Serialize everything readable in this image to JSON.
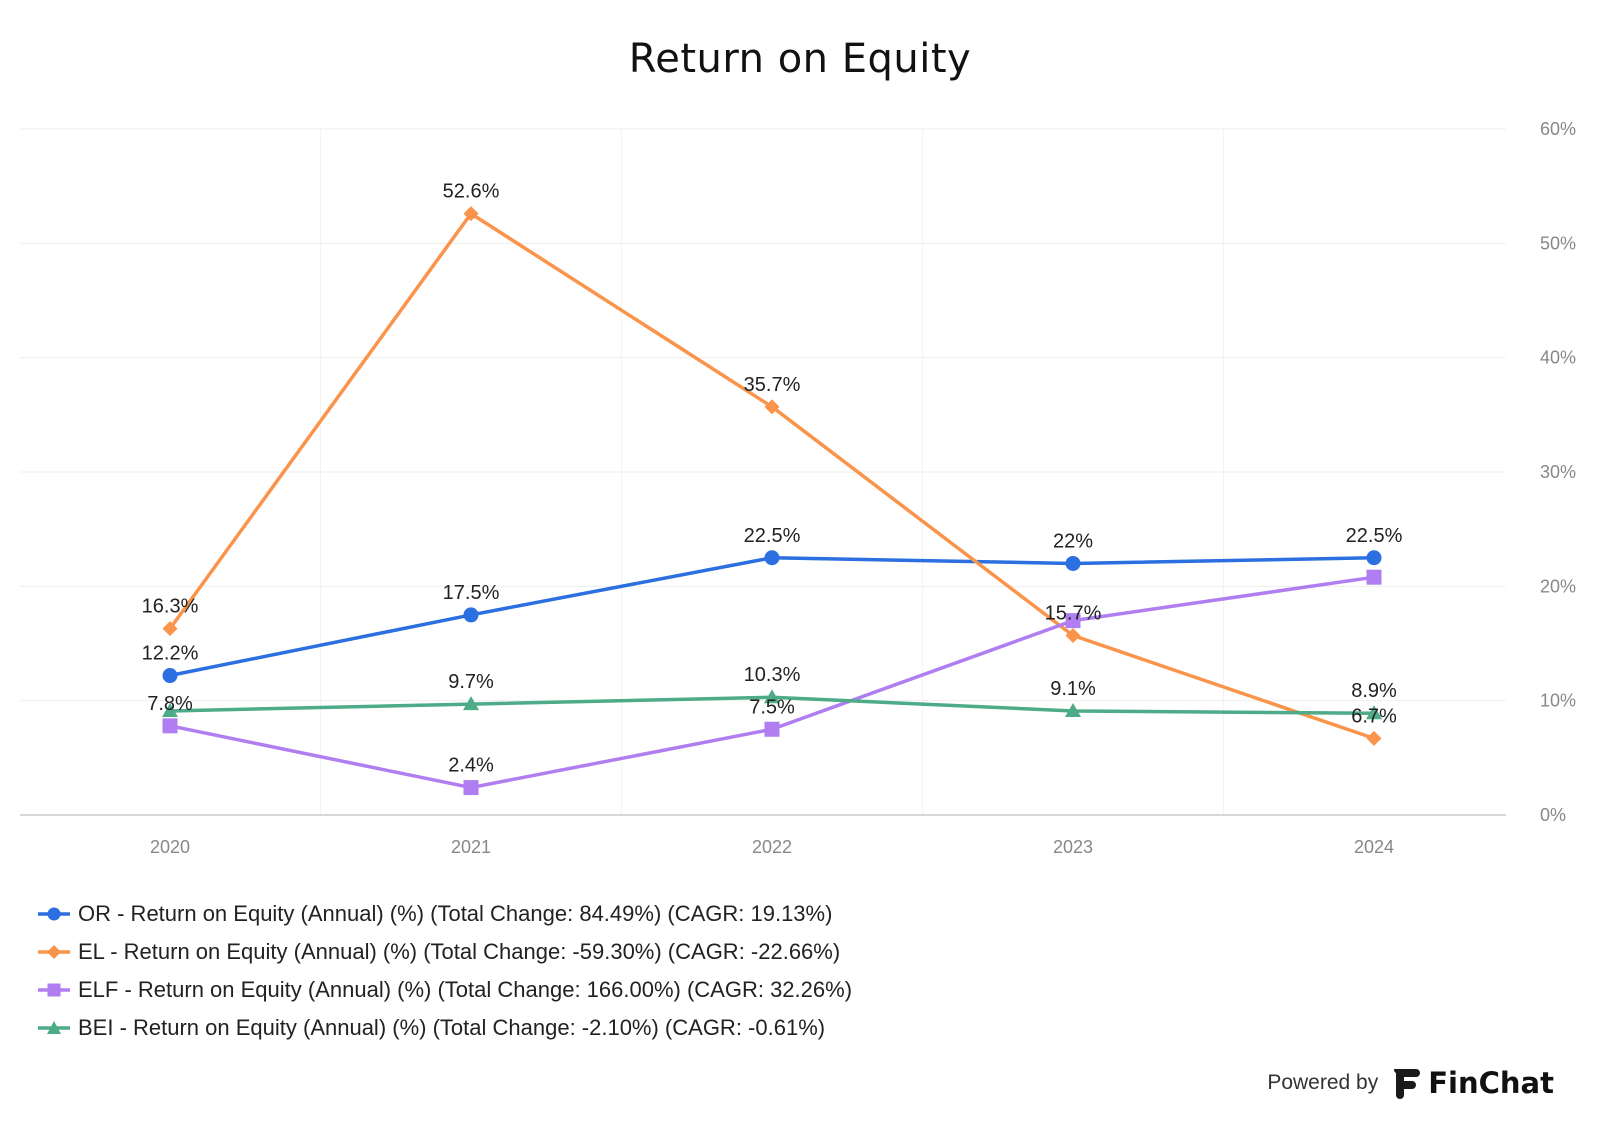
{
  "chart_data": {
    "type": "line",
    "title": "Return on Equity",
    "categories": [
      "2020",
      "2021",
      "2022",
      "2023",
      "2024"
    ],
    "y_ticks": [
      "0%",
      "10%",
      "20%",
      "30%",
      "40%",
      "50%",
      "60%"
    ],
    "ylim": [
      0,
      60
    ],
    "y_axis_position": "right",
    "grid": true,
    "legend_position": "bottom-left",
    "series": [
      {
        "name": "OR - Return on Equity (Annual) (%) (Total Change: 84.49%) (CAGR: 19.13%)",
        "marker": "circle",
        "color": "#2b6fe0",
        "values": [
          12.2,
          17.5,
          22.5,
          22.0,
          22.5
        ],
        "labels": [
          "12.2%",
          "17.5%",
          "22.5%",
          "22%",
          "22.5%"
        ],
        "label_pos": [
          "above",
          "above",
          "above",
          "above",
          "above"
        ]
      },
      {
        "name": "EL - Return on Equity (Annual) (%) (Total Change: -59.30%) (CAGR: -22.66%)",
        "marker": "diamond",
        "color": "#f9944a",
        "values": [
          16.3,
          52.6,
          35.7,
          15.7,
          6.7
        ],
        "labels": [
          "16.3%",
          "52.6%",
          "35.7%",
          "15.7%",
          "6.7%"
        ],
        "label_pos": [
          "above",
          "above",
          "above",
          "above-right",
          "above"
        ]
      },
      {
        "name": "ELF - Return on Equity (Annual) (%) (Total Change: 166.00%) (CAGR: 32.26%)",
        "marker": "square",
        "color": "#b07ef0",
        "values": [
          7.8,
          2.4,
          7.5,
          17.0,
          20.8
        ],
        "labels": [
          "7.8%",
          "2.4%",
          "7.5%",
          "",
          ""
        ],
        "label_pos": [
          "above",
          "above",
          "above",
          "none",
          "none"
        ]
      },
      {
        "name": "BEI - Return on Equity (Annual) (%) (Total Change: -2.10%) (CAGR: -0.61%)",
        "marker": "triangle",
        "color": "#4dab87",
        "values": [
          9.1,
          9.7,
          10.3,
          9.1,
          8.9
        ],
        "labels": [
          "",
          "9.7%",
          "10.3%",
          "9.1%",
          "8.9%"
        ],
        "label_pos": [
          "none",
          "above",
          "above",
          "above",
          "above"
        ]
      }
    ]
  },
  "footer": {
    "powered_by": "Powered by",
    "brand": "FinChat"
  }
}
